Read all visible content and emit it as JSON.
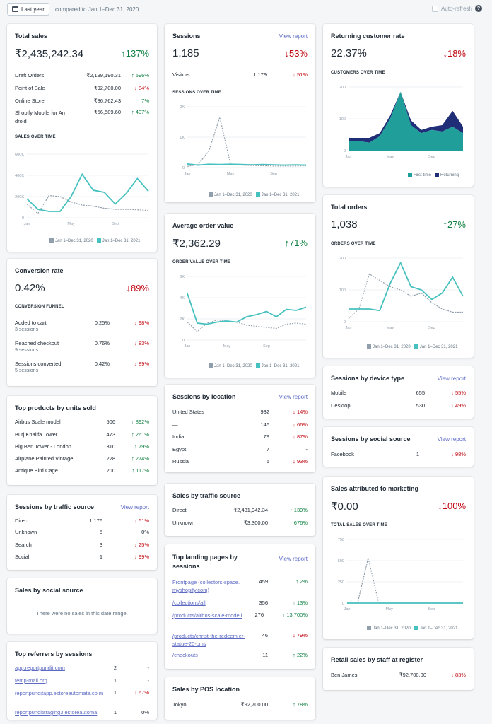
{
  "topbar": {
    "date_button": "Last year",
    "compared": "compared to Jan 1–Dec 31, 2020",
    "auto_refresh": "Auto-refresh",
    "help": "?"
  },
  "legend": {
    "prev": "Jan 1–Dec 31, 2020",
    "curr": "Jan 1–Dec 31, 2021",
    "first_time": "First-time",
    "returning": "Returning"
  },
  "view_report": "View report",
  "colors": {
    "accent": "#47c1bf",
    "teal": "#1f9e9a",
    "navy": "#202e78",
    "up": "#108043",
    "down": "#bf0711",
    "link": "#5c6ac4",
    "prev_line": "#919eab"
  },
  "total_sales": {
    "title": "Total sales",
    "value": "₹2,435,242.34",
    "change": "↑137%",
    "rows": [
      {
        "label": "Draft Orders",
        "value": "₹2,199,190.31",
        "change": "↑ 596%"
      },
      {
        "label": "Point of Sale",
        "value": "₹92,700.00",
        "change": "↓ 84%"
      },
      {
        "label": "Online Store",
        "value": "₹86,762.43",
        "change": "↑ 7%"
      },
      {
        "label": "Shopify Mobile for An droid",
        "value": "₹56,589.60",
        "change": "↑ 407%"
      }
    ],
    "chart_title": "SALES OVER TIME",
    "yticks": [
      "600K",
      "400K",
      "200K",
      "0"
    ],
    "xticks": [
      "Jan",
      "May",
      "Sep"
    ]
  },
  "sessions": {
    "title": "Sessions",
    "value": "1,185",
    "change": "↓53%",
    "rows": [
      {
        "label": "Visitors",
        "value": "1,179",
        "change": "↓ 51%"
      }
    ],
    "chart_title": "SESSIONS OVER TIME",
    "yticks": [
      "2K",
      "1K",
      "0"
    ],
    "xticks": [
      "Jan",
      "May",
      "Sep"
    ]
  },
  "returning": {
    "title": "Returning customer rate",
    "value": "22.37%",
    "change": "↓18%",
    "chart_title": "CUSTOMERS OVER TIME",
    "yticks": [
      "200",
      "100",
      "0"
    ],
    "xticks": [
      "Jan",
      "May",
      "Sep"
    ]
  },
  "conversion": {
    "title": "Conversion rate",
    "value": "0.42%",
    "change": "↓89%",
    "funnel_title": "CONVERSION FUNNEL",
    "rows": [
      {
        "label": "Added to cart",
        "sub": "3 sessions",
        "value": "0.25%",
        "change": "↓ 98%"
      },
      {
        "label": "Reached checkout",
        "sub": "9 sessions",
        "value": "0.76%",
        "change": "↓ 83%"
      },
      {
        "label": "Sessions converted",
        "sub": "5 sessions",
        "value": "0.42%",
        "change": "↓ 89%"
      }
    ]
  },
  "aov": {
    "title": "Average order value",
    "value": "₹2,362.29",
    "change": "↑71%",
    "chart_title": "ORDER VALUE OVER TIME",
    "yticks": [
      "6K",
      "4K",
      "2K",
      "0"
    ],
    "xticks": [
      "Jan",
      "May",
      "Sep"
    ]
  },
  "orders": {
    "title": "Total orders",
    "value": "1,038",
    "change": "↑27%",
    "chart_title": "ORDERS OVER TIME",
    "yticks": [
      "200",
      "100",
      "0"
    ],
    "xticks": [
      "Jan",
      "May",
      "Sep"
    ]
  },
  "top_products": {
    "title": "Top products by units sold",
    "rows": [
      {
        "label": "Airbus Scale model",
        "value": "506",
        "change": "↑ 892%"
      },
      {
        "label": "Burj Khalifa Tower",
        "value": "473",
        "change": "↑ 261%"
      },
      {
        "label": "Big Ben Tower - London",
        "value": "310",
        "change": "↑ 79%"
      },
      {
        "label": "Airplane Painted Vintage",
        "value": "228",
        "change": "↑ 274%"
      },
      {
        "label": "Antique Bird Cage",
        "value": "200",
        "change": "↑ 117%"
      }
    ]
  },
  "sessions_location": {
    "title": "Sessions by location",
    "rows": [
      {
        "label": "United States",
        "value": "932",
        "change": "↓ 14%"
      },
      {
        "label": "—",
        "value": "146",
        "change": "↓ 66%"
      },
      {
        "label": "India",
        "value": "79",
        "change": "↓ 87%"
      },
      {
        "label": "Egypt",
        "value": "7",
        "change": "-"
      },
      {
        "label": "Russia",
        "value": "5",
        "change": "↓ 93%"
      }
    ]
  },
  "device": {
    "title": "Sessions by device type",
    "rows": [
      {
        "label": "Mobile",
        "value": "655",
        "change": "↓ 55%"
      },
      {
        "label": "Desktop",
        "value": "530",
        "change": "↓ 49%"
      }
    ]
  },
  "social_source": {
    "title": "Sessions by social source",
    "rows": [
      {
        "label": "Facebook",
        "value": "1",
        "change": "↓ 98%"
      }
    ]
  },
  "traffic_source": {
    "title": "Sessions by traffic source",
    "rows": [
      {
        "label": "Direct",
        "value": "1,176",
        "change": "↓ 51%"
      },
      {
        "label": "Unknown",
        "value": "5",
        "change": "0%"
      },
      {
        "label": "Search",
        "value": "3",
        "change": "↓ 25%"
      },
      {
        "label": "Social",
        "value": "1",
        "change": "↓ 99%"
      }
    ]
  },
  "sales_traffic": {
    "title": "Sales by traffic source",
    "rows": [
      {
        "label": "Direct",
        "value": "₹2,431,942.34",
        "change": "↑ 139%"
      },
      {
        "label": "Unknown",
        "value": "₹3,300.00",
        "change": "↑ 676%"
      }
    ]
  },
  "marketing": {
    "title": "Sales attributed to marketing",
    "value": "₹0.00",
    "change": "↓100%",
    "chart_title": "TOTAL SALES OVER TIME",
    "yticks": [
      "750",
      "500",
      "250",
      "0"
    ],
    "xticks": [
      "Jan",
      "May",
      "Sep"
    ]
  },
  "social_sales": {
    "title": "Sales by social source",
    "empty": "There were no sales in this date range."
  },
  "landing": {
    "title": "Top landing pages by sessions",
    "rows": [
      {
        "label": "Frontpage (collectors-space. myshopify.com)",
        "value": "459",
        "change": "↑ 2%"
      },
      {
        "label": "/collections/all",
        "value": "356",
        "change": "↑ 13%"
      },
      {
        "label": "/products/airbus-scale-mode l",
        "value": "276",
        "change": "↑ 13,700%"
      },
      {
        "label": "/products/christ-the-redeem er-statue-20-cms",
        "value": "46",
        "change": "↓ 79%"
      },
      {
        "label": "/checkouts",
        "value": "11",
        "change": "↑ 22%"
      }
    ]
  },
  "referrers": {
    "title": "Top referrers by sessions",
    "rows": [
      {
        "label": "app.reportpundit.com",
        "value": "2",
        "change": "-"
      },
      {
        "label": "temp-mail.org",
        "value": "1",
        "change": "-"
      },
      {
        "label": "reportpunditapp.estoreautomate.co m",
        "value": "1",
        "change": "↓ 67%"
      },
      {
        "label": "reportpunditstaging3.estoreautoma",
        "value": "1",
        "change": "0%"
      }
    ]
  },
  "pos_location": {
    "title": "Sales by POS location",
    "rows": [
      {
        "label": "Tokyo",
        "value": "₹92,700.00",
        "change": "↑ 78%"
      }
    ]
  },
  "staff": {
    "title": "Retail sales by staff at register",
    "rows": [
      {
        "label": "Ben James",
        "value": "₹92,700.00",
        "change": "↓ 83%"
      }
    ]
  },
  "chart_data": [
    {
      "type": "line",
      "id": "sales",
      "ylim": [
        0,
        600000
      ],
      "series": [
        {
          "name": "Jan 1–Dec 31, 2021",
          "values": [
            180000,
            80000,
            60000,
            60000,
            200000,
            410000,
            260000,
            240000,
            130000,
            230000,
            370000,
            250000
          ]
        },
        {
          "name": "Jan 1–Dec 31, 2020",
          "values": [
            130000,
            40000,
            210000,
            200000,
            150000,
            120000,
            110000,
            90000,
            80000,
            80000,
            75000,
            70000
          ]
        }
      ]
    },
    {
      "type": "line",
      "id": "sessions",
      "ylim": [
        0,
        2000
      ],
      "series": [
        {
          "name": "Jan 1–Dec 31, 2021",
          "values": [
            120,
            80,
            110,
            100,
            110,
            100,
            90,
            100,
            90,
            80,
            90,
            80
          ]
        },
        {
          "name": "Jan 1–Dec 31, 2020",
          "values": [
            40,
            100,
            550,
            1650,
            120,
            80,
            70,
            60,
            50,
            50,
            50,
            60
          ]
        }
      ]
    },
    {
      "type": "area",
      "id": "returning",
      "ylim": [
        0,
        200
      ],
      "series": [
        {
          "name": "First-time",
          "values": [
            30,
            30,
            25,
            45,
            100,
            185,
            80,
            55,
            65,
            60,
            75,
            55
          ]
        },
        {
          "name": "Returning",
          "values": [
            10,
            10,
            15,
            10,
            10,
            0,
            15,
            10,
            10,
            20,
            50,
            20
          ]
        }
      ]
    },
    {
      "type": "line",
      "id": "aov",
      "ylim": [
        0,
        6000
      ],
      "series": [
        {
          "name": "Jan 1–Dec 31, 2021",
          "values": [
            4400,
            1600,
            1500,
            1700,
            1800,
            1700,
            2200,
            2400,
            2700,
            2200,
            2900,
            2800,
            3100
          ]
        },
        {
          "name": "Jan 1–Dec 31, 2020",
          "values": [
            1700,
            800,
            1600,
            1900,
            1800,
            1700,
            1400,
            1300,
            1200,
            1100,
            1500,
            1600,
            1500
          ]
        }
      ]
    },
    {
      "type": "line",
      "id": "orders",
      "ylim": [
        0,
        200
      ],
      "series": [
        {
          "name": "Jan 1–Dec 31, 2021",
          "values": [
            40,
            40,
            40,
            35,
            120,
            185,
            110,
            100,
            70,
            90,
            140,
            80
          ]
        },
        {
          "name": "Jan 1–Dec 31, 2020",
          "values": [
            10,
            40,
            150,
            130,
            110,
            100,
            80,
            90,
            60,
            40,
            30,
            30
          ]
        }
      ]
    },
    {
      "type": "line",
      "id": "marketing",
      "ylim": [
        0,
        750
      ],
      "series": [
        {
          "name": "Jan 1–Dec 31, 2021",
          "values": [
            0,
            0,
            0,
            0,
            0,
            0,
            0,
            0,
            0,
            0,
            0,
            0
          ]
        },
        {
          "name": "Jan 1–Dec 31, 2020",
          "values": [
            0,
            0,
            530,
            0,
            0,
            0,
            0,
            0,
            0,
            0,
            0,
            0
          ]
        }
      ]
    }
  ]
}
